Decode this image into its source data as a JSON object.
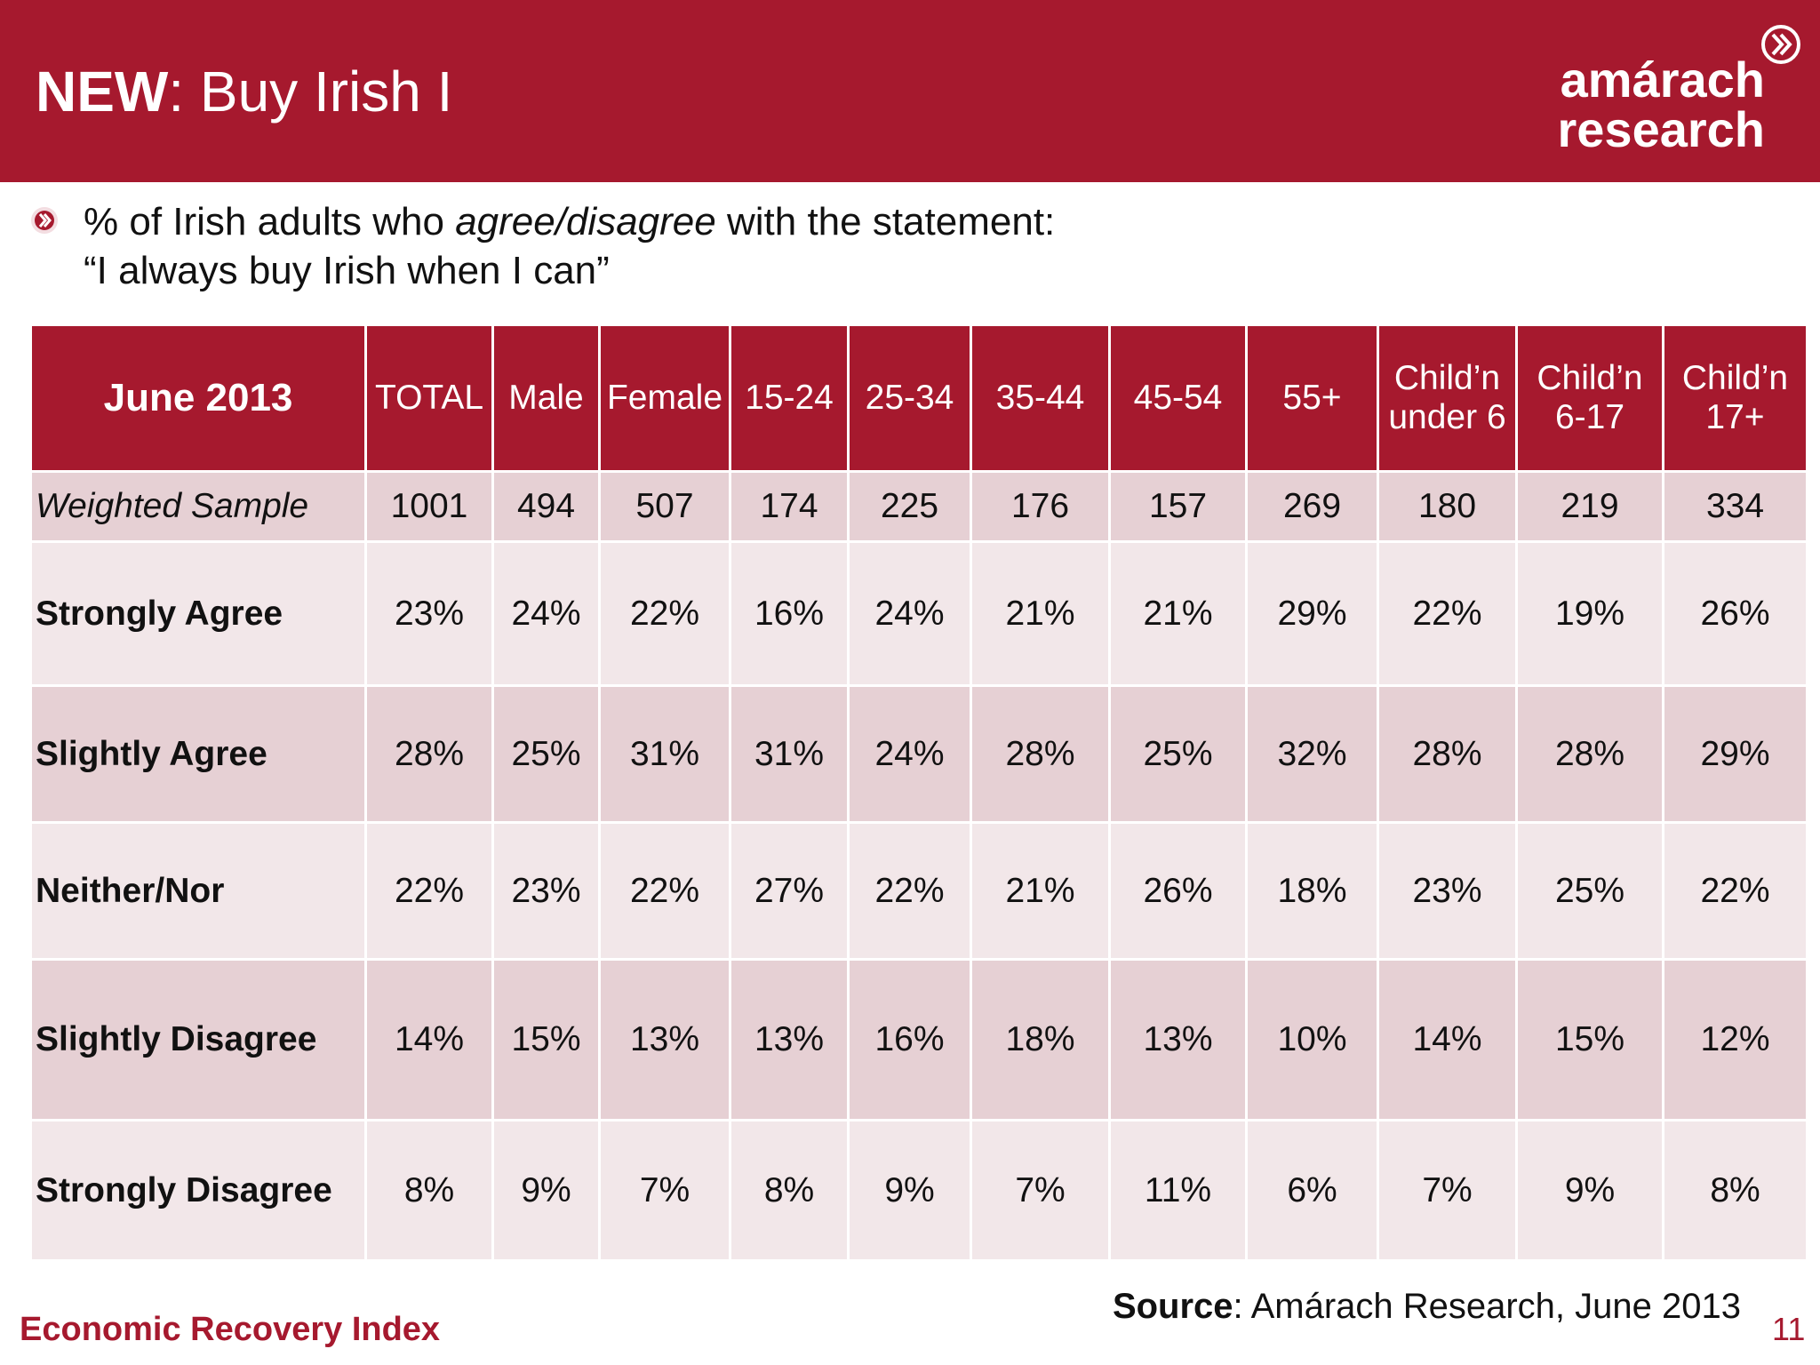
{
  "header": {
    "title_bold": "NEW",
    "title_rest": ": Buy Irish I",
    "logo": [
      "amárach",
      "research"
    ]
  },
  "subtitle": {
    "line1": [
      "% of Irish adults who ",
      "agree/disagree",
      " with the statement:"
    ],
    "line2": "“I always buy Irish when I can”"
  },
  "table": {
    "corner": "June 2013",
    "columns": [
      [
        "TOTAL"
      ],
      [
        "Male"
      ],
      [
        "Female"
      ],
      [
        "15-24"
      ],
      [
        "25-34"
      ],
      [
        "35-44"
      ],
      [
        "45-54"
      ],
      [
        "55+"
      ],
      [
        "Child’n",
        "under 6"
      ],
      [
        "Child’n",
        "6-17"
      ],
      [
        "Child’n",
        "17+"
      ]
    ],
    "rows": [
      {
        "label": "Weighted Sample",
        "cells": [
          1001,
          494,
          507,
          174,
          225,
          176,
          157,
          269,
          180,
          219,
          334
        ]
      },
      {
        "label": "Strongly Agree",
        "cells": [
          "23%",
          "24%",
          "22%",
          "16%",
          "24%",
          "21%",
          "21%",
          "29%",
          "22%",
          "19%",
          "26%"
        ]
      },
      {
        "label": "Slightly Agree",
        "cells": [
          "28%",
          "25%",
          "31%",
          "31%",
          "24%",
          "28%",
          "25%",
          "32%",
          "28%",
          "28%",
          "29%"
        ]
      },
      {
        "label": "Neither/Nor",
        "cells": [
          "22%",
          "23%",
          "22%",
          "27%",
          "22%",
          "21%",
          "26%",
          "18%",
          "23%",
          "25%",
          "22%"
        ]
      },
      {
        "label": "Slightly Disagree",
        "cells": [
          "14%",
          "15%",
          "13%",
          "13%",
          "16%",
          "18%",
          "13%",
          "10%",
          "14%",
          "15%",
          "12%"
        ]
      },
      {
        "label": "Strongly Disagree",
        "cells": [
          "8%",
          "9%",
          "7%",
          "8%",
          "9%",
          "7%",
          "11%",
          "6%",
          "7%",
          "9%",
          "8%"
        ]
      }
    ]
  },
  "footer": {
    "source_bold": "Source",
    "source_rest": ": Amárach Research, June 2013",
    "index": "Economic Recovery Index",
    "page": "11"
  }
}
